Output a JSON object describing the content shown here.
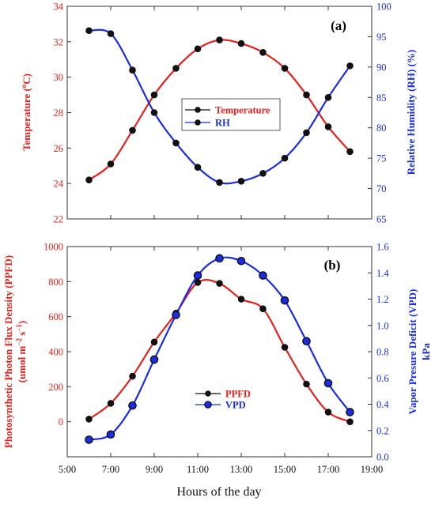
{
  "colors": {
    "red": "#e8201c",
    "blue": "#1a2ce6",
    "marker": "#111111",
    "frame": "#333333"
  },
  "xlabel": "Hours of the day",
  "chart_data": [
    {
      "type": "line",
      "panel_label": "(a)",
      "x": [
        6,
        7,
        8,
        9,
        10,
        11,
        12,
        13,
        14,
        15,
        16,
        17,
        18
      ],
      "series": [
        {
          "name": "Temperature",
          "axis": "left",
          "values": [
            24.2,
            25.1,
            27.0,
            29.0,
            30.5,
            31.6,
            32.1,
            31.9,
            31.4,
            30.5,
            29.0,
            27.2,
            25.8
          ]
        },
        {
          "name": "RH",
          "axis": "right",
          "values": [
            96.0,
            95.5,
            89.5,
            82.5,
            77.5,
            73.5,
            71.0,
            71.2,
            72.5,
            75.0,
            79.2,
            85.0,
            90.2
          ]
        }
      ],
      "ylabel_left": "Temperature (°C)",
      "ylabel_right": "Relative Humidity (RH) (%)",
      "ylim_left": [
        22,
        34
      ],
      "ylim_right": [
        65,
        100
      ],
      "xlim": [
        5,
        19
      ],
      "yticks_left": [
        "22",
        "24",
        "26",
        "28",
        "30",
        "32",
        "34"
      ],
      "yticks_right": [
        "65",
        "70",
        "75",
        "80",
        "85",
        "90",
        "95",
        "100"
      ],
      "legend": "center"
    },
    {
      "type": "line",
      "panel_label": "(b)",
      "x": [
        6,
        7,
        8,
        9,
        10,
        11,
        12,
        13,
        14,
        15,
        16,
        17,
        18
      ],
      "series": [
        {
          "name": "PPFD",
          "axis": "left",
          "values": [
            15,
            105,
            260,
            455,
            620,
            795,
            790,
            700,
            645,
            425,
            215,
            55,
            0
          ]
        },
        {
          "name": "VPD",
          "axis": "right",
          "values": [
            0.13,
            0.17,
            0.39,
            0.74,
            1.08,
            1.38,
            1.51,
            1.49,
            1.38,
            1.19,
            0.88,
            0.56,
            0.34
          ]
        }
      ],
      "ylabel_left_line1": "Photosynthetic Photon Flux Density (PPFD)",
      "ylabel_left_line2": "(umol m⁻² s⁻¹)",
      "ylabel_right_line1": "Vapor Presure Deficit (VPD)",
      "ylabel_right_line2": "kPa",
      "ylim_left": [
        -200,
        1000
      ],
      "ylim_right": [
        0,
        1.6
      ],
      "xlim": [
        5,
        19
      ],
      "yticks_left": [
        "0",
        "200",
        "400",
        "600",
        "800",
        "1000"
      ],
      "yticks_right": [
        "0.0",
        "0.2",
        "0.4",
        "0.6",
        "0.8",
        "1.0",
        "1.2",
        "1.4",
        "1.6"
      ],
      "xticks": [
        "5:00",
        "7:00",
        "9:00",
        "11:00",
        "13:00",
        "15:00",
        "17:00",
        "19:00"
      ],
      "legend": "bottom-center"
    }
  ]
}
